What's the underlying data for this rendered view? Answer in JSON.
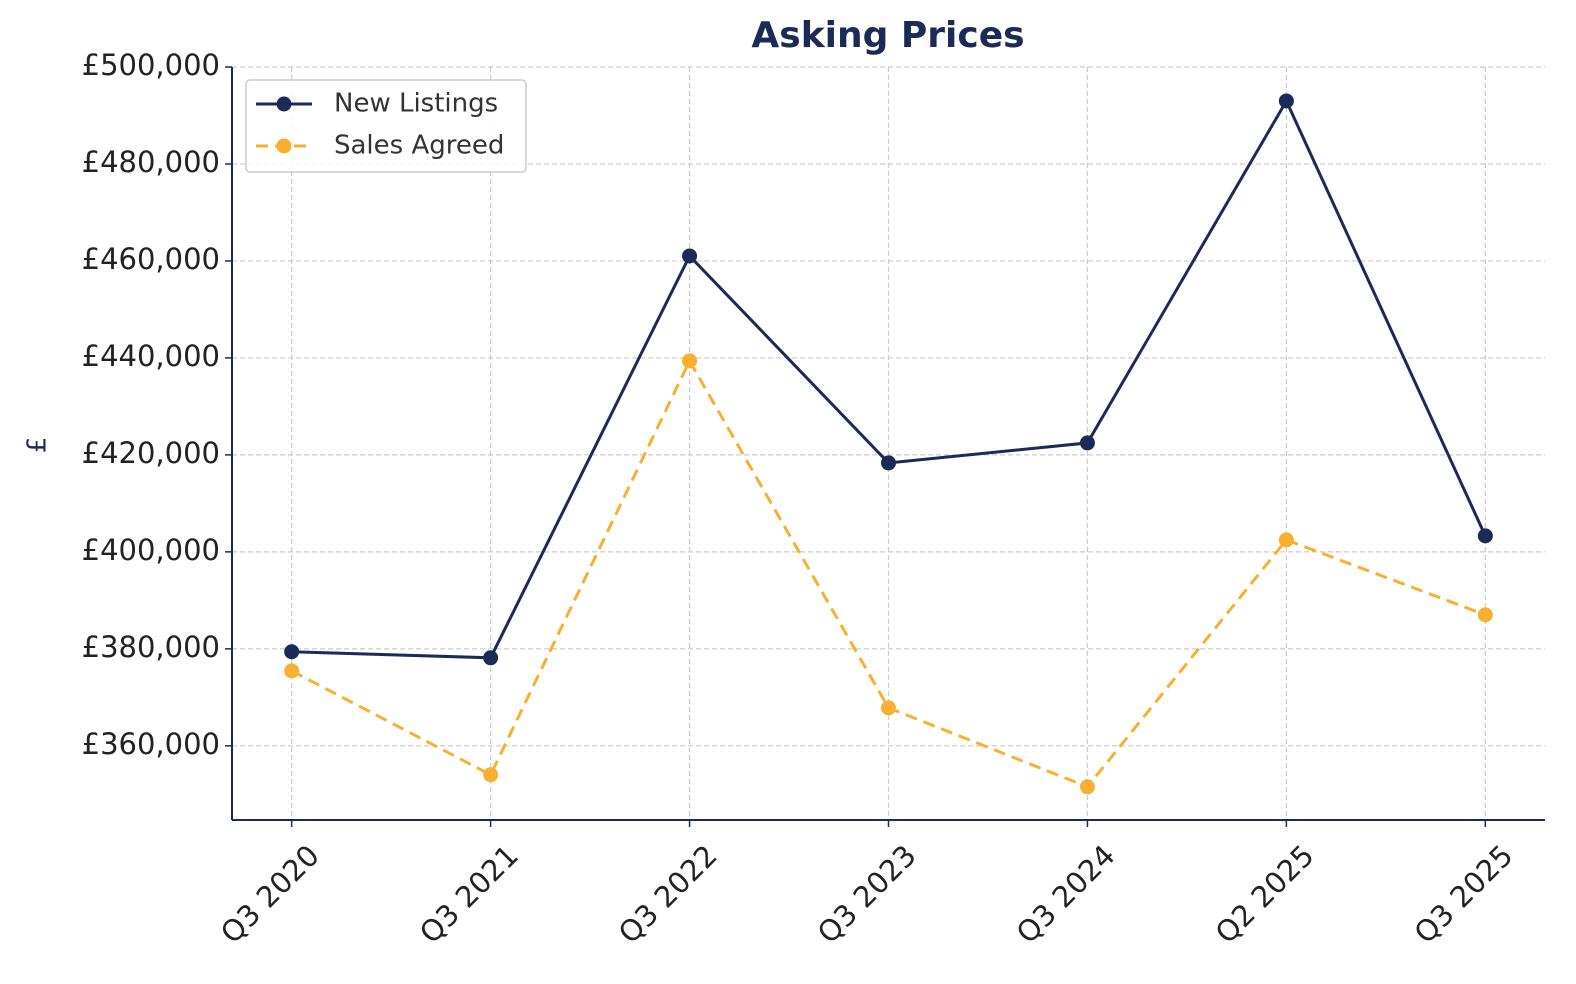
{
  "chart_data": {
    "type": "line",
    "title": "Asking Prices",
    "ylabel": "£",
    "categories": [
      "Q3 2020",
      "Q3 2021",
      "Q3 2022",
      "Q3 2023",
      "Q3 2024",
      "Q2 2025",
      "Q3 2025"
    ],
    "series": [
      {
        "name": "New Listings",
        "color": "#1b2a56",
        "linestyle": "solid",
        "values": [
          379400,
          378150,
          461030,
          418350,
          422470,
          492990,
          403300
        ]
      },
      {
        "name": "Sales Agreed",
        "color": "#f9b031",
        "linestyle": "dashed",
        "values": [
          375460,
          354020,
          439380,
          367840,
          351550,
          402470,
          387010
        ]
      }
    ],
    "ylim": [
      344700,
      500000
    ],
    "yticks": [
      {
        "value": 360000,
        "label": "£360,000"
      },
      {
        "value": 380000,
        "label": "£380,000"
      },
      {
        "value": 400000,
        "label": "£400,000"
      },
      {
        "value": 420000,
        "label": "£420,000"
      },
      {
        "value": 440000,
        "label": "£440,000"
      },
      {
        "value": 460000,
        "label": "£460,000"
      },
      {
        "value": 480000,
        "label": "£480,000"
      },
      {
        "value": 500000,
        "label": "£500,000"
      }
    ],
    "grid": true,
    "legend": "upper left"
  }
}
